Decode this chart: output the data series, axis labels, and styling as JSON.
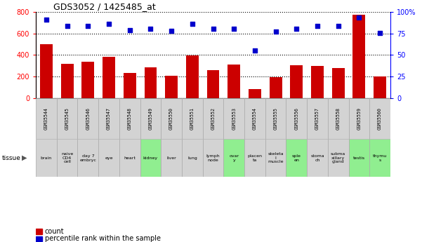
{
  "title": "GDS3052 / 1425485_at",
  "samples": [
    "GSM35544",
    "GSM35545",
    "GSM35546",
    "GSM35547",
    "GSM35548",
    "GSM35549",
    "GSM35550",
    "GSM35551",
    "GSM35552",
    "GSM35553",
    "GSM35554",
    "GSM35555",
    "GSM35556",
    "GSM35557",
    "GSM35558",
    "GSM35559",
    "GSM35560"
  ],
  "counts": [
    500,
    320,
    335,
    385,
    235,
    285,
    207,
    395,
    262,
    315,
    85,
    195,
    308,
    300,
    278,
    775,
    200
  ],
  "percentiles": [
    91,
    84,
    84,
    86,
    79,
    81,
    78,
    86,
    81,
    81,
    55,
    77,
    81,
    84,
    84,
    94,
    76
  ],
  "tissues": [
    "brain",
    "naive\nCD4\ncell",
    "day 7\nembryc",
    "eye",
    "heart",
    "kidney",
    "liver",
    "lung",
    "lymph\nnode",
    "ovar\ny",
    "placen\nta",
    "skeleta\nl\nmuscle",
    "sple\nen",
    "stoma\nch",
    "subma\nxillary\ngland",
    "testis",
    "thymu\ns"
  ],
  "tissue_colors": [
    "#d3d3d3",
    "#d3d3d3",
    "#d3d3d3",
    "#d3d3d3",
    "#d3d3d3",
    "#90ee90",
    "#d3d3d3",
    "#d3d3d3",
    "#d3d3d3",
    "#90ee90",
    "#d3d3d3",
    "#d3d3d3",
    "#90ee90",
    "#d3d3d3",
    "#d3d3d3",
    "#90ee90",
    "#90ee90"
  ],
  "bar_color": "#cc0000",
  "dot_color": "#0000cc",
  "ylim_left": [
    0,
    800
  ],
  "ylim_right": [
    0,
    100
  ],
  "yticks_left": [
    0,
    200,
    400,
    600,
    800
  ],
  "yticks_right": [
    0,
    25,
    50,
    75,
    100
  ],
  "ytick_labels_right": [
    "0",
    "25",
    "50",
    "75",
    "100%"
  ],
  "sample_box_color": "#d3d3d3",
  "bg_color": "#ffffff"
}
